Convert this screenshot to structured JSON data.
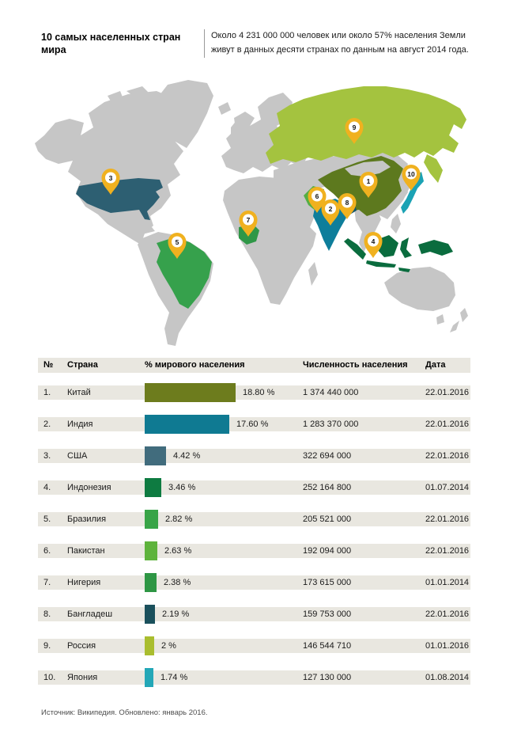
{
  "header": {
    "title": "10 самых населенных стран мира",
    "subtitle_line1": "Около 4 231 000 000 человек или около 57% населения Земли",
    "subtitle_line2": "живут в данных десяти странах по данным на август 2014 года."
  },
  "map": {
    "colors": {
      "land": "#c6c6c6",
      "marker": "#f0b11f",
      "marker_inner": "#ffffff",
      "russia": "#a4c33f",
      "china": "#5d791e",
      "india": "#0e7e9b",
      "usa": "#2d5f72",
      "indonesia": "#0a6c3e",
      "brazil": "#36a14c",
      "pakistan": "#54ae44",
      "nigeria": "#2f9747",
      "bangladesh": "#14566a",
      "japan": "#1ba2b4"
    },
    "markers": [
      {
        "number": "1",
        "country": "Китай"
      },
      {
        "number": "2",
        "country": "Индия"
      },
      {
        "number": "3",
        "country": "США"
      },
      {
        "number": "4",
        "country": "Индонезия"
      },
      {
        "number": "5",
        "country": "Бразилия"
      },
      {
        "number": "6",
        "country": "Пакистан"
      },
      {
        "number": "7",
        "country": "Нигерия"
      },
      {
        "number": "8",
        "country": "Бангладеш"
      },
      {
        "number": "9",
        "country": "Россия"
      },
      {
        "number": "10",
        "country": "Япония"
      }
    ]
  },
  "table": {
    "columns": {
      "num": "№",
      "country": "Страна",
      "pct": "% мирового населения",
      "population": "Численность населения",
      "date": "Дата"
    },
    "rows": [
      {
        "num": "1.",
        "country": "Китай",
        "pct": 18.8,
        "pct_label": "18.80 %",
        "population": "1 374 440 000",
        "date": "22.01.2016",
        "color": "#6d7c1d"
      },
      {
        "num": "2.",
        "country": "Индия",
        "pct": 17.6,
        "pct_label": "17.60 %",
        "population": "1 283 370 000",
        "date": "22.01.2016",
        "color": "#0f7a92"
      },
      {
        "num": "3.",
        "country": "США",
        "pct": 4.42,
        "pct_label": "4.42 %",
        "population": "322 694 000",
        "date": "22.01.2016",
        "color": "#416c7d"
      },
      {
        "num": "4.",
        "country": "Индонезия",
        "pct": 3.46,
        "pct_label": "3.46 %",
        "population": "252 164 800",
        "date": "01.07.2014",
        "color": "#0e7b41"
      },
      {
        "num": "5.",
        "country": "Бразилия",
        "pct": 2.82,
        "pct_label": "2.82 %",
        "population": "205 521 000",
        "date": "22.01.2016",
        "color": "#38a447"
      },
      {
        "num": "6.",
        "country": "Пакистан",
        "pct": 2.63,
        "pct_label": "2.63 %",
        "population": "192 094 000",
        "date": "22.01.2016",
        "color": "#5eb33c"
      },
      {
        "num": "7.",
        "country": "Нигерия",
        "pct": 2.38,
        "pct_label": "2.38 %",
        "population": "173 615 000",
        "date": "01.01.2014",
        "color": "#2e9644"
      },
      {
        "num": "8.",
        "country": "Бангладеш",
        "pct": 2.19,
        "pct_label": "2.19 %",
        "population": "159 753 000",
        "date": "22.01.2016",
        "color": "#1a505c"
      },
      {
        "num": "9.",
        "country": "Россия",
        "pct": 2,
        "pct_label": "2 %",
        "population": "146 544 710",
        "date": "01.01.2016",
        "color": "#a9bd2e"
      },
      {
        "num": "10.",
        "country": "Япония",
        "pct": 1.74,
        "pct_label": "1.74 %",
        "population": "127 130 000",
        "date": "01.08.2014",
        "color": "#23a7b7"
      }
    ]
  },
  "footer": {
    "source": "Источник: Википедия. Обновлено: январь 2016."
  },
  "chart_data": {
    "type": "bar",
    "title": "10 самых населенных стран мира",
    "subtitle": "Около 4 231 000 000 человек или около 57% населения Земли живут в данных десяти странах по данным на август 2014 года.",
    "categories": [
      "Китай",
      "Индия",
      "США",
      "Индонезия",
      "Бразилия",
      "Пакистан",
      "Нигерия",
      "Бангладеш",
      "Россия",
      "Япония"
    ],
    "series": [
      {
        "name": "% мирового населения",
        "values": [
          18.8,
          17.6,
          4.42,
          3.46,
          2.82,
          2.63,
          2.38,
          2.19,
          2,
          1.74
        ]
      },
      {
        "name": "Численность населения",
        "values": [
          1374440000,
          1283370000,
          322694000,
          252164800,
          205521000,
          192094000,
          173615000,
          159753000,
          146544710,
          127130000
        ]
      }
    ],
    "dates": [
      "22.01.2016",
      "22.01.2016",
      "22.01.2016",
      "01.07.2014",
      "22.01.2016",
      "22.01.2016",
      "01.01.2014",
      "22.01.2016",
      "01.01.2016",
      "01.08.2014"
    ],
    "xlabel": "",
    "ylabel": "% мирового населения",
    "ylim": [
      0,
      20
    ],
    "grid": false,
    "legend_position": "none",
    "orientation": "horizontal",
    "source": "Википедия, обновлено январь 2016"
  }
}
